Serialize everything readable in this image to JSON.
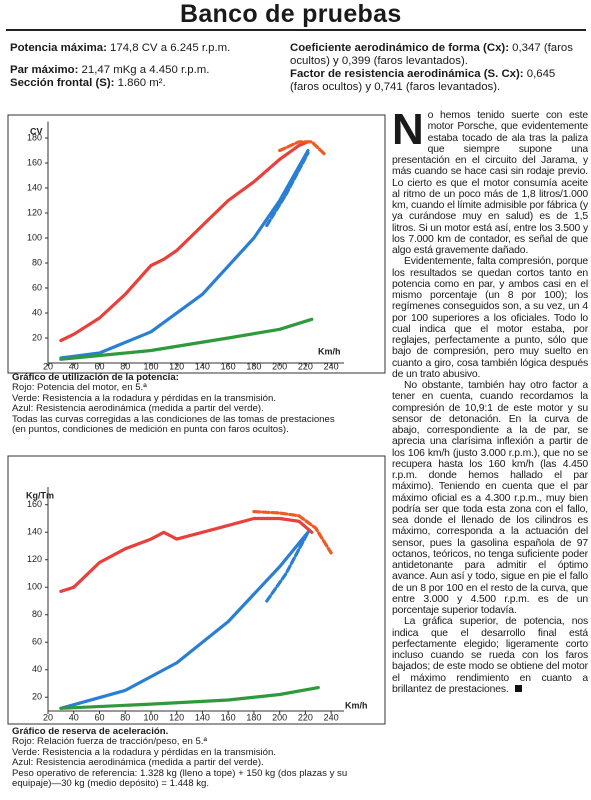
{
  "header": {
    "title": "Banco de pruebas"
  },
  "specs": {
    "left": [
      {
        "label": "Potencia máxima:",
        "value": "174,8 CV a 6.245 r.p.m."
      },
      {
        "label": "Par máximo:",
        "value": "21,47 mKg a 4.450 r.p.m."
      },
      {
        "label": "Sección frontal (S):",
        "value": "1.860 m²."
      }
    ],
    "right": [
      {
        "label": "Coeficiente aerodinámico de forma (Cx):",
        "value": "0,347 (faros ocultos) y 0,399 (faros levantados)."
      },
      {
        "label": "Factor de resistencia aerodinámica (S. Cx):",
        "value": "0,645 (faros ocultos) y 0,741 (faros levantados)."
      }
    ]
  },
  "charts": [
    {
      "type": "line",
      "y_label": "CV",
      "x_unit_label": "Km/h",
      "xlim": [
        20,
        250
      ],
      "ylim": [
        0,
        190
      ],
      "xticks": [
        20,
        40,
        60,
        80,
        100,
        120,
        140,
        160,
        180,
        200,
        220,
        240
      ],
      "yticks": [
        20,
        40,
        60,
        80,
        100,
        120,
        140,
        160,
        180
      ],
      "series": [
        {
          "color": "#e8403a",
          "style": "solid",
          "x": [
            30,
            40,
            60,
            80,
            100,
            110,
            120,
            140,
            160,
            180,
            200,
            215,
            222
          ],
          "values": [
            18,
            23,
            36,
            55,
            78,
            83,
            90,
            110,
            130,
            145,
            163,
            174,
            177
          ]
        },
        {
          "color": "#ee5a24",
          "style": "dashed",
          "x": [
            200,
            215,
            225,
            235
          ],
          "values": [
            170,
            177,
            177,
            167
          ]
        },
        {
          "color": "#2a7fd4",
          "style": "solid",
          "x": [
            30,
            60,
            100,
            140,
            180,
            200,
            222
          ],
          "values": [
            4,
            8,
            25,
            55,
            100,
            130,
            170
          ]
        },
        {
          "color": "#2a7fd4",
          "style": "dashed",
          "x": [
            190,
            205,
            222
          ],
          "values": [
            110,
            135,
            168
          ]
        },
        {
          "color": "#2e9a3c",
          "style": "solid",
          "x": [
            30,
            100,
            160,
            200,
            225
          ],
          "values": [
            3,
            10,
            20,
            27,
            35
          ]
        }
      ]
    },
    {
      "type": "line",
      "y_label": "Kg/Tm",
      "x_unit_label": "Km/h",
      "xlim": [
        20,
        250
      ],
      "ylim": [
        10,
        170
      ],
      "xticks": [
        20,
        40,
        60,
        80,
        100,
        120,
        140,
        160,
        180,
        200,
        220,
        240
      ],
      "yticks": [
        20,
        40,
        60,
        80,
        100,
        120,
        140,
        160
      ],
      "series": [
        {
          "color": "#e8403a",
          "style": "solid",
          "x": [
            30,
            40,
            60,
            80,
            100,
            110,
            120,
            140,
            160,
            180,
            200,
            215,
            225
          ],
          "values": [
            97,
            100,
            118,
            128,
            135,
            140,
            135,
            140,
            145,
            150,
            150,
            148,
            140
          ]
        },
        {
          "color": "#ee5a24",
          "style": "dashed",
          "x": [
            180,
            200,
            215,
            228,
            240
          ],
          "values": [
            155,
            154,
            152,
            143,
            125
          ]
        },
        {
          "color": "#2a7fd4",
          "style": "solid",
          "x": [
            30,
            80,
            120,
            160,
            200,
            222
          ],
          "values": [
            12,
            25,
            45,
            75,
            115,
            140
          ]
        },
        {
          "color": "#2a7fd4",
          "style": "dashed",
          "x": [
            190,
            205,
            222
          ],
          "values": [
            90,
            110,
            140
          ]
        },
        {
          "color": "#2e9a3c",
          "style": "solid",
          "x": [
            30,
            100,
            160,
            200,
            230
          ],
          "values": [
            12,
            15,
            18,
            22,
            27
          ]
        }
      ]
    }
  ],
  "captions": [
    [
      "Gráfico de utilización de la potencia:",
      "Rojo: Potencia del motor, en 5.ª",
      "Verde: Resistencia a la rodadura y pérdidas en la transmisión.",
      "Azul: Resistencia aerodinámica (medida a partir del verde).",
      "Todas las curvas corregidas a las condiciones de las tomas de prestaciones",
      "(en puntos, condiciones de medición en punta con faros ocultos)."
    ],
    [
      "Gráfico de reserva de aceleración.",
      "Rojo: Relación fuerza de tracción/peso, en 5.ª",
      "Verde: Resistencia a la rodadura y pérdidas en la transmisión.",
      "Azul: Resistencia aerodinámica (medida a partir del verde).",
      "Peso operativo de referencia: 1.328 kg (lleno a tope) + 150 kg (dos plazas y su",
      "equipaje)—30 kg (medio depósito) = 1.448 kg."
    ]
  ],
  "article": {
    "drop_cap": "N",
    "paragraphs": [
      "o hemos tenido suerte con este motor Porsche, que evidentemente estaba tocado de ala tras la paliza que siempre supone una presentación en el circuito del Jarama, y más cuando se hace casi sin rodaje previo. Lo cierto es que el motor consumía aceite al ritmo de un poco más de 1,8 litros/1.000 km, cuando el límite admisible por fábrica (y ya curándose muy en salud) es de 1,5 litros. Si un motor está así, entre los 3.500 y los 7.000 km de contador, es señal de que algo está gravemente dañado.",
      "Evidentemente, falta compresión, porque los resultados se quedan cortos tanto en potencia como en par, y ambos casi en el mismo porcentaje (un 8 por 100); los regímenes conseguidos son, a su vez, un 4 por 100 superiores a los oficiales. Todo lo cual indica que el motor estaba, por reglajes, perfectamente a punto, sólo que bajo de compresión, pero muy suelto en cuanto a giro, cosa también lógica después de un trato abusivo.",
      "No obstante, también hay otro factor a tener en cuenta, cuando recordamos la compresión de 10,9:1 de este motor y su sensor de detonación. En la curva de abajo, correspondiente a la de par, se aprecia una clarísima inflexión a partir de los 106 km/h (justo 3.000 r.p.m.), que no se recupera hasta los 160 km/h (las 4.450 r.p.m. donde hemos hallado el par máximo). Teniendo en cuenta que el par máximo oficial es a 4.300 r.p.m., muy bien podría ser que toda esta zona con el fallo, sea donde el llenado de los cilindros es máximo, corresponda a la actuación del sensor, pues la gasolina española de 97 octanos, teóricos, no tenga suficiente poder antidetonante para admitir el óptimo avance. Aun así y todo, sigue en pie el fallo de un 8 por 100 en el resto de la curva, que entre 3.000 y 4.500 r.p.m. es de un porcentaje superior todavía.",
      "La gráfica superior, de potencia, nos indica que el desarrollo final está perfectamente elegido; ligeramente corto incluso cuando se rueda con los faros bajados; de este modo se obtiene del motor el máximo rendimiento en cuanto a brillantez de prestaciones."
    ]
  }
}
